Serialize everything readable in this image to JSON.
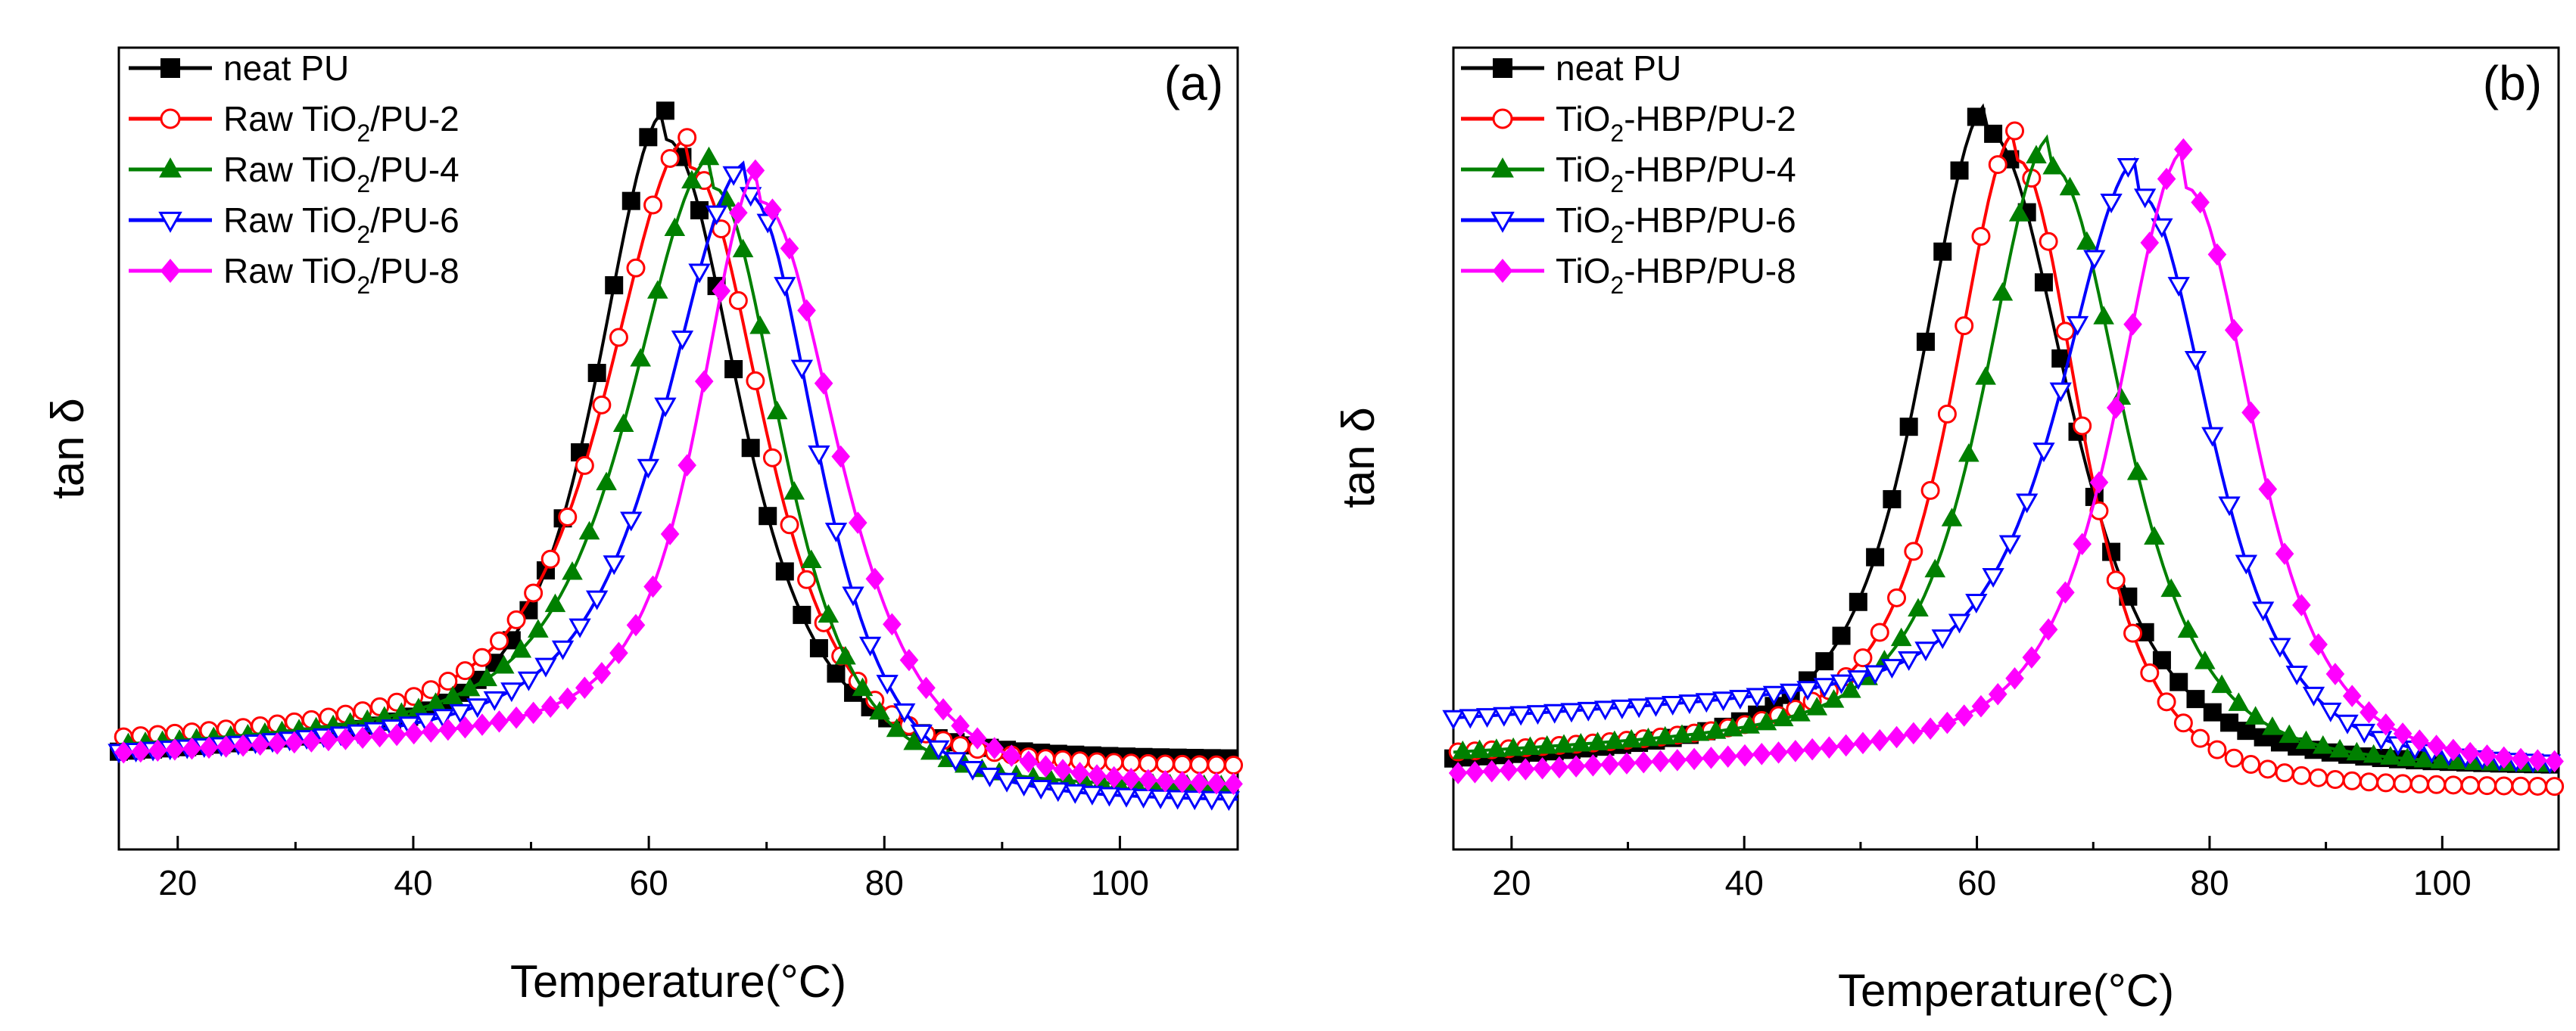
{
  "chart_data": [
    {
      "type": "line",
      "panel_label": "(a)",
      "xlabel": "Temperature(°C)",
      "ylabel": "tan δ",
      "xlim": [
        15,
        110
      ],
      "ylim": [
        0,
        1.0
      ],
      "x_ticks": [
        20,
        40,
        60,
        80,
        100
      ],
      "y_ticks": [],
      "legend_position": "top-left",
      "series": [
        {
          "name": "neat PU",
          "label_base": "neat PU",
          "label_sub": "",
          "label_tail": "",
          "color": "#000000",
          "marker": "square-filled",
          "peak_T": 61.5,
          "peak": 0.96,
          "baseline_low": 0.07,
          "baseline_high": 0.06,
          "width_left": 8.0,
          "width_right": 8.5,
          "end_slope": 0.0
        },
        {
          "name": "Raw TiO2/PU-2",
          "label_base": "Raw TiO",
          "label_sub": "2",
          "label_tail": "/PU-2",
          "color": "#ff0000",
          "marker": "circle-open",
          "peak_T": 63.5,
          "peak": 0.92,
          "baseline_low": 0.09,
          "baseline_high": 0.05,
          "width_left": 9.5,
          "width_right": 8.5,
          "end_slope": 0.0
        },
        {
          "name": "Raw TiO2/PU-4",
          "label_base": "Raw TiO",
          "label_sub": "2",
          "label_tail": "/PU-4",
          "color": "#008000",
          "marker": "triangle-filled",
          "peak_T": 65.5,
          "peak": 0.89,
          "baseline_low": 0.08,
          "baseline_high": 0.02,
          "width_left": 9.5,
          "width_right": 8.0,
          "end_slope": 0.0
        },
        {
          "name": "Raw TiO2/PU-6",
          "label_base": "Raw TiO",
          "label_sub": "2",
          "label_tail": "/PU-6",
          "color": "#0000ff",
          "marker": "triangle-open-down",
          "peak_T": 68.5,
          "peak": 0.88,
          "baseline_low": 0.07,
          "baseline_high": 0.0,
          "width_left": 9.5,
          "width_right": 8.0,
          "end_slope": 0.0
        },
        {
          "name": "Raw TiO2/PU-8",
          "label_base": "Raw TiO",
          "label_sub": "2",
          "label_tail": "/PU-8",
          "color": "#ff00ff",
          "marker": "diamond-filled",
          "peak_T": 69.5,
          "peak": 0.87,
          "baseline_low": 0.07,
          "baseline_high": 0.02,
          "width_left": 7.0,
          "width_right": 9.0,
          "end_slope": 0.0
        }
      ]
    },
    {
      "type": "line",
      "panel_label": "(b)",
      "xlabel": "Temperature(°C)",
      "ylabel": "tan δ",
      "xlim": [
        15,
        110
      ],
      "ylim": [
        0,
        1.0
      ],
      "x_ticks": [
        20,
        40,
        60,
        80,
        100
      ],
      "y_ticks": [],
      "legend_position": "top-left",
      "series": [
        {
          "name": "neat PU",
          "label_base": "neat PU",
          "label_sub": "",
          "label_tail": "",
          "color": "#000000",
          "marker": "square-filled",
          "peak_T": 61.0,
          "peak": 0.97,
          "baseline_low": 0.06,
          "baseline_high": 0.05,
          "width_left": 8.0,
          "width_right": 9.5,
          "end_slope": 0.0
        },
        {
          "name": "TiO2-HBP/PU-2",
          "label_base": "TiO",
          "label_sub": "2",
          "label_tail": "-HBP/PU-2",
          "color": "#ff0000",
          "marker": "circle-open",
          "peak_T": 63.5,
          "peak": 0.93,
          "baseline_low": 0.07,
          "baseline_high": 0.02,
          "width_left": 7.5,
          "width_right": 7.5,
          "end_slope": 0.0
        },
        {
          "name": "TiO2-HBP/PU-4",
          "label_base": "TiO",
          "label_sub": "2",
          "label_tail": "-HBP/PU-4",
          "color": "#008000",
          "marker": "triangle-filled",
          "peak_T": 66.5,
          "peak": 0.92,
          "baseline_low": 0.07,
          "baseline_high": 0.05,
          "width_left": 8.0,
          "width_right": 8.5,
          "end_slope": 0.0
        },
        {
          "name": "TiO2-HBP/PU-6",
          "label_base": "TiO",
          "label_sub": "2",
          "label_tail": "-HBP/PU-6",
          "color": "#0000ff",
          "marker": "triangle-open-down",
          "peak_T": 74.0,
          "peak": 0.88,
          "baseline_low": 0.12,
          "baseline_high": 0.05,
          "width_left": 9.0,
          "width_right": 8.5,
          "end_slope": 0.0
        },
        {
          "name": "TiO2-HBP/PU-8",
          "label_base": "TiO",
          "label_sub": "2",
          "label_tail": "-HBP/PU-8",
          "color": "#ff00ff",
          "marker": "diamond-filled",
          "peak_T": 78.0,
          "peak": 0.89,
          "baseline_low": 0.04,
          "baseline_high": 0.05,
          "width_left": 8.0,
          "width_right": 8.0,
          "end_slope": 0.0
        }
      ]
    }
  ]
}
